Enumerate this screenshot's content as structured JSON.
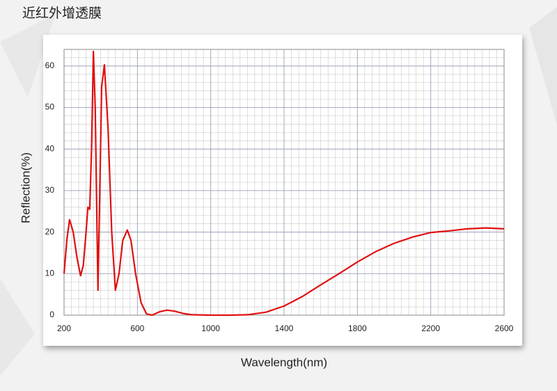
{
  "chart_data": {
    "type": "line",
    "title": "近红外增透膜",
    "x_label": "Wavelength(nm)",
    "y_label": "Reflection(%)",
    "x": [
      200,
      215,
      230,
      250,
      270,
      290,
      305,
      320,
      330,
      340,
      350,
      360,
      370,
      380,
      385,
      395,
      405,
      420,
      440,
      460,
      480,
      500,
      520,
      545,
      565,
      590,
      620,
      650,
      680,
      720,
      760,
      800,
      850,
      900,
      1000,
      1100,
      1200,
      1300,
      1400,
      1500,
      1600,
      1700,
      1800,
      1900,
      2000,
      2100,
      2200,
      2300,
      2400,
      2500,
      2600
    ],
    "series": [
      {
        "name": "Reflection",
        "color": "#e01010",
        "values": [
          10,
          18,
          23,
          20,
          14,
          9.5,
          12,
          20,
          26,
          25.5,
          40,
          63.5,
          50,
          20,
          6,
          30,
          55,
          60.3,
          45,
          20,
          6,
          10,
          18,
          20.5,
          18,
          10,
          3,
          0.3,
          0,
          0.8,
          1.2,
          1,
          0.4,
          0.1,
          0,
          0,
          0.1,
          0.7,
          2.2,
          4.5,
          7.3,
          10,
          12.8,
          15.3,
          17.3,
          18.8,
          19.9,
          20.3,
          20.8,
          21,
          20.8
        ]
      }
    ],
    "xlim": [
      200,
      2600
    ],
    "xticks": [
      200,
      600,
      1000,
      1400,
      1800,
      2200,
      2600
    ],
    "ylim": [
      0,
      64
    ],
    "yticks": [
      0,
      10,
      20,
      30,
      40,
      50,
      60
    ],
    "grid": true
  }
}
